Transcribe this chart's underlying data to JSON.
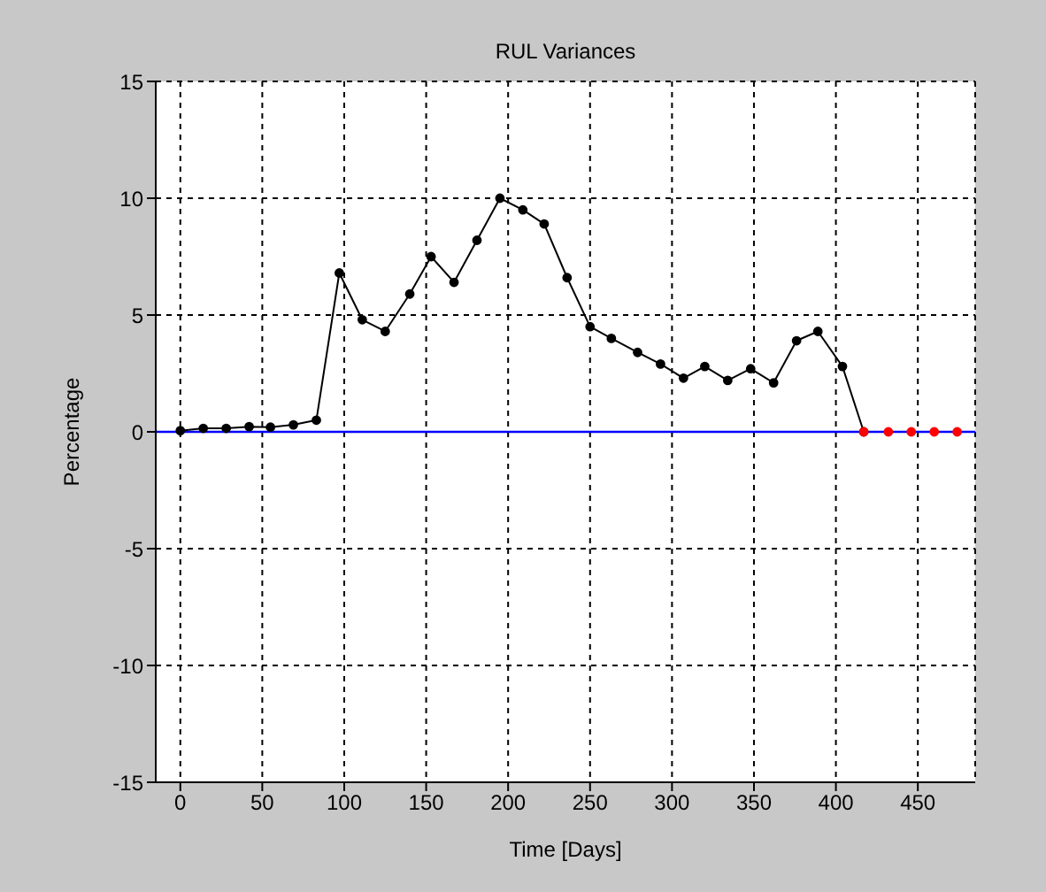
{
  "chart_data": {
    "type": "line",
    "title": "RUL Variances",
    "xlabel": "Time [Days]",
    "ylabel": "Percentage",
    "xlim": [
      -15,
      485
    ],
    "xticks": [
      0,
      50,
      100,
      150,
      200,
      250,
      300,
      350,
      400,
      450
    ],
    "ylim": [
      -15,
      15
    ],
    "yticks": [
      -15,
      -10,
      -5,
      0,
      5,
      10,
      15
    ],
    "grid": true,
    "marker": "circle",
    "line_style": "solid",
    "ref_lines": [
      {
        "axis": "y",
        "value": 0,
        "color": "#0000ff"
      }
    ],
    "series": [
      {
        "color": "#000000",
        "x": [
          0,
          14,
          28,
          42,
          55,
          69,
          83,
          97,
          111,
          125,
          140,
          153,
          167,
          181,
          195,
          209,
          222,
          236,
          250,
          263,
          279,
          293,
          307,
          320,
          334,
          348,
          362,
          376,
          389,
          404,
          417
        ],
        "values": [
          0.05,
          0.15,
          0.15,
          0.22,
          0.2,
          0.3,
          0.5,
          6.8,
          4.8,
          4.3,
          5.9,
          7.5,
          6.4,
          8.2,
          10.0,
          9.5,
          8.9,
          6.6,
          4.5,
          4.0,
          3.4,
          2.9,
          2.3,
          2.8,
          2.2,
          2.7,
          2.1,
          3.9,
          4.3,
          2.8,
          0
        ]
      },
      {
        "type": "scatter",
        "color": "#ff0000",
        "x": [
          417,
          432,
          446,
          460,
          474
        ],
        "values": [
          0,
          0,
          0,
          0,
          0
        ]
      }
    ]
  }
}
